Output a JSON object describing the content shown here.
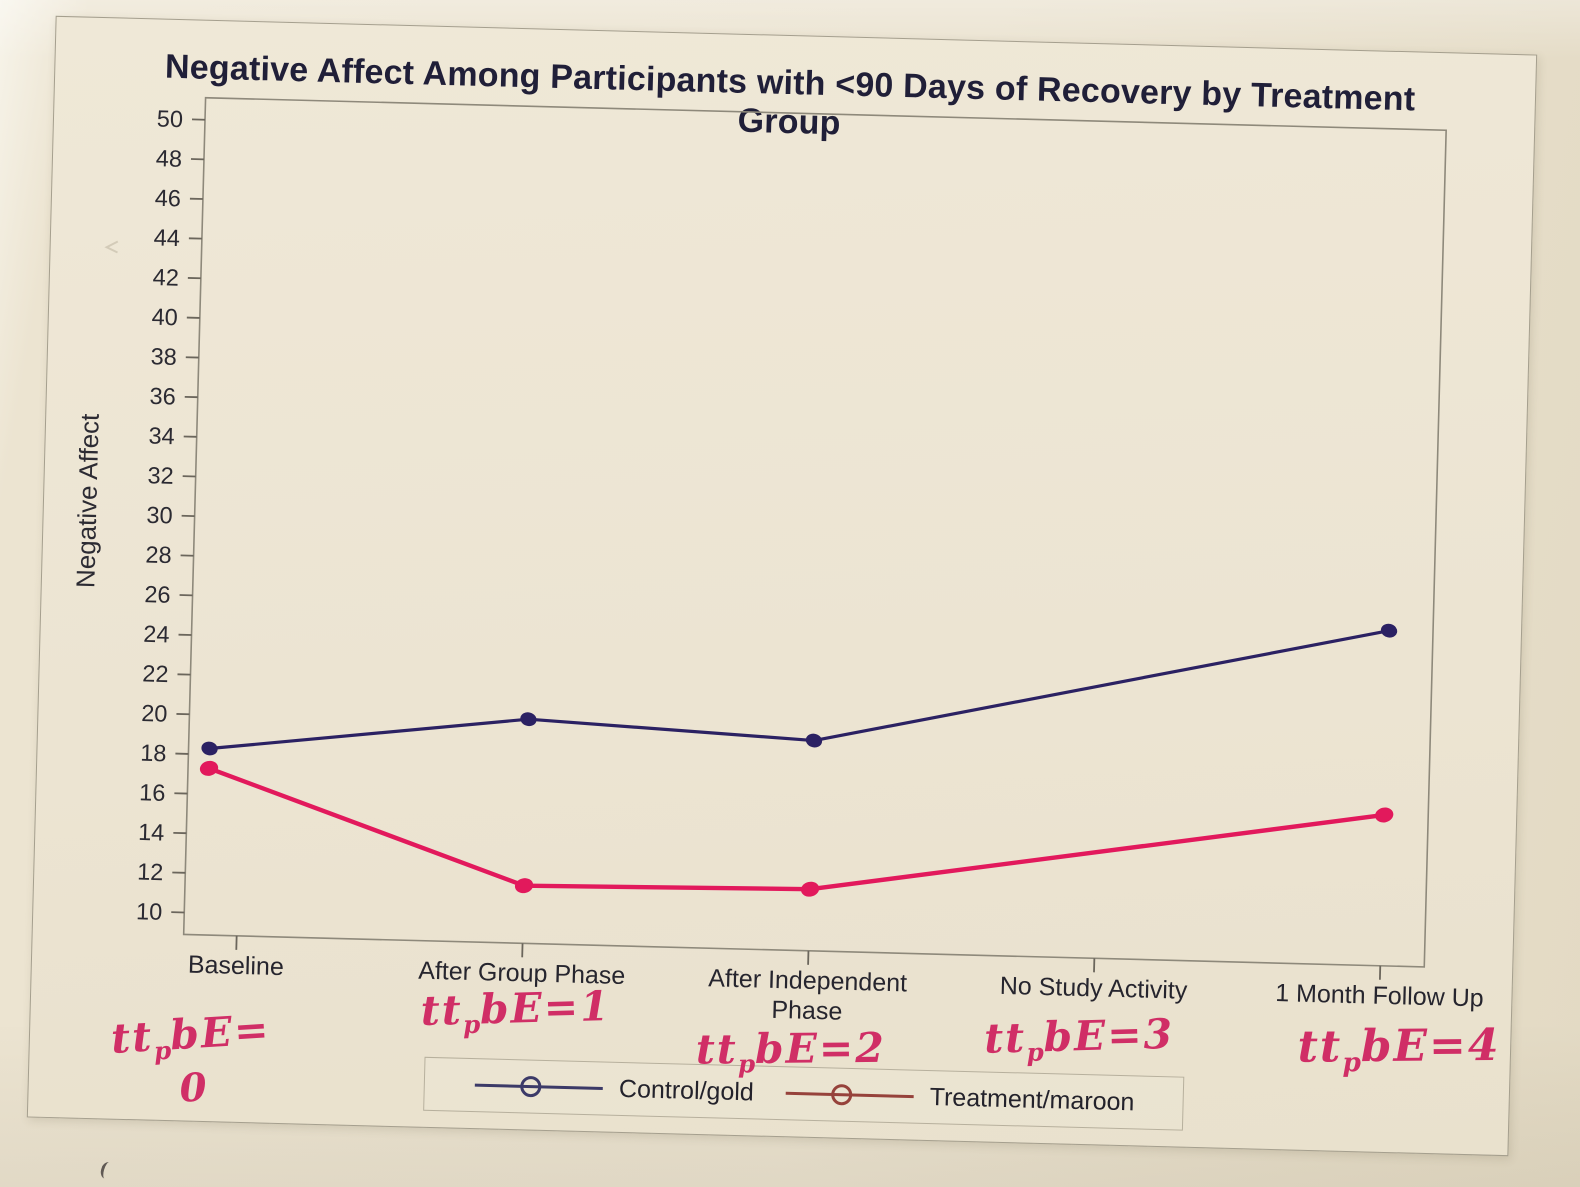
{
  "figure": {
    "title": "Negative Affect Among Participants with <90 Days of Recovery by Treatment Group",
    "y_axis": {
      "label": "Negative Affect",
      "min": 10,
      "max": 50,
      "ticks": [
        50,
        48,
        46,
        44,
        42,
        40,
        38,
        36,
        34,
        32,
        30,
        28,
        26,
        24,
        22,
        20,
        18,
        16,
        14,
        12,
        10
      ]
    },
    "x_axis": {
      "categories": [
        "Baseline",
        "After Group Phase",
        "After Independent Phase",
        "No Study Activity",
        "1 Month Follow Up"
      ]
    },
    "legend": [
      {
        "label": "Control/gold",
        "color": "#3c3a68"
      },
      {
        "label": "Treatment/maroon",
        "color": "#96423b"
      }
    ],
    "annotations": [
      {
        "pre": "tt",
        "sub": "p",
        "post": "bE=",
        "line2": "0"
      },
      {
        "pre": "tt",
        "sub": "p",
        "post": "bE=1",
        "line2": ""
      },
      {
        "pre": "tt",
        "sub": "p",
        "post": "bE=2",
        "line2": ""
      },
      {
        "pre": "tt",
        "sub": "p",
        "post": "bE=3",
        "line2": ""
      },
      {
        "pre": "tt",
        "sub": "p",
        "post": "bE=4",
        "line2": ""
      }
    ]
  },
  "chart_data": {
    "type": "line",
    "title": "Negative Affect Among Participants with <90 Days of Recovery by Treatment Group",
    "categories": [
      "Baseline",
      "After Group Phase",
      "After Independent Phase",
      "No Study Activity",
      "1 Month Follow Up"
    ],
    "series": [
      {
        "name": "Control/gold",
        "drawn_color": "#2b2163",
        "legend_color": "#3c3a68",
        "values": [
          18.3,
          20.2,
          19.5,
          null,
          25.8
        ]
      },
      {
        "name": "Treatment/maroon",
        "drawn_color": "#e2195c",
        "legend_color": "#96423b",
        "values": [
          17.3,
          11.8,
          12.0,
          null,
          16.5
        ]
      }
    ],
    "xlabel": "",
    "ylabel": "Negative Affect",
    "ylim": [
      10,
      50
    ],
    "y_tick_step": 2,
    "grid": false,
    "legend_position": "bottom-center",
    "marker": "filled-dot (hand-traced)",
    "annotations": [
      {
        "text": "ttpbE=0",
        "under_category": "Baseline"
      },
      {
        "text": "ttpbE=1",
        "under_category": "After Group Phase"
      },
      {
        "text": "ttpbE=2",
        "under_category": "After Independent Phase"
      },
      {
        "text": "ttpbE=3",
        "under_category": "No Study Activity"
      },
      {
        "text": "ttpbE=4",
        "under_category": "1 Month Follow Up"
      }
    ]
  }
}
